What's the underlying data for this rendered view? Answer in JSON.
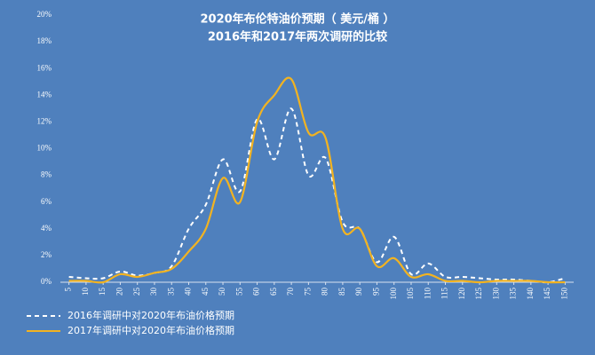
{
  "chart_data": {
    "type": "line",
    "title": "2020年布伦特油价预期（ 美元/桶 ）",
    "subtitle": "2016年和2017年两次调研的比较",
    "categories": [
      "5",
      "10",
      "15",
      "20",
      "25",
      "30",
      "35",
      "40",
      "45",
      "50",
      "55",
      "60",
      "65",
      "70",
      "75",
      "80",
      "85",
      "90",
      "95",
      "100",
      "105",
      "110",
      "115",
      "120",
      "125",
      "130",
      "135",
      "140",
      "145",
      "150"
    ],
    "series": [
      {
        "name": "2016年调研中对2020年布油价格预期",
        "color": "#ffffff",
        "dashed": true,
        "values": [
          0.4,
          0.3,
          0.3,
          0.8,
          0.5,
          0.7,
          1.2,
          4,
          5.8,
          9.2,
          6.8,
          12.2,
          9.2,
          13,
          8,
          9.3,
          4.5,
          4,
          1.5,
          3.4,
          0.6,
          1.4,
          0.4,
          0.4,
          0.3,
          0.2,
          0.2,
          0.1,
          0,
          0.3
        ]
      },
      {
        "name": "2017年调研中对2020年布油价格预期",
        "color": "#f2b321",
        "dashed": false,
        "values": [
          0.1,
          0.1,
          0,
          0.6,
          0.4,
          0.7,
          1,
          2.3,
          4,
          7.8,
          6,
          12,
          14,
          15.2,
          11.2,
          10.8,
          4,
          4,
          1.2,
          1.8,
          0.4,
          0.6,
          0.1,
          0.1,
          0,
          0.1,
          0.1,
          0.1,
          0,
          0
        ]
      }
    ],
    "ylim": [
      0,
      20
    ],
    "yticks": [
      {
        "value": 0,
        "label": "0%"
      },
      {
        "value": 2,
        "label": "2%"
      },
      {
        "value": 4,
        "label": "4%"
      },
      {
        "value": 6,
        "label": "6%"
      },
      {
        "value": 8,
        "label": "8%"
      },
      {
        "value": 10,
        "label": "10%"
      },
      {
        "value": 12,
        "label": "12%"
      },
      {
        "value": 14,
        "label": "14%"
      },
      {
        "value": 16,
        "label": "16%"
      },
      {
        "value": 18,
        "label": "18%"
      },
      {
        "value": 20,
        "label": "20%"
      }
    ],
    "background": "#4f80bd"
  }
}
